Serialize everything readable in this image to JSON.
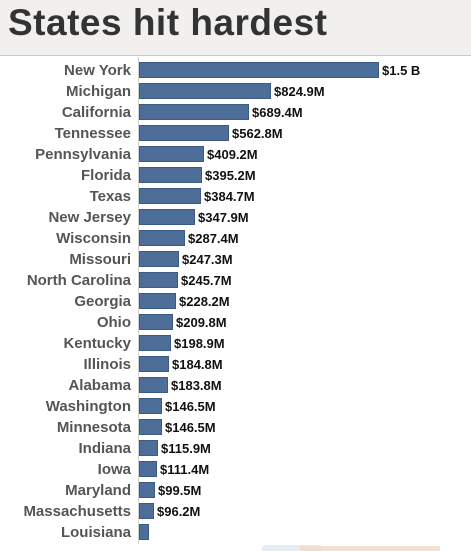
{
  "title": "States hit hardest",
  "colors": {
    "bar": "#4e6e9a",
    "title_bg": "#f1f0ee"
  },
  "chart_data": {
    "type": "bar",
    "orientation": "horizontal",
    "title": "States hit hardest",
    "xlabel": "",
    "ylabel": "",
    "grid": false,
    "xlim": [
      0,
      1500
    ],
    "unit": "USD millions",
    "categories": [
      "New York",
      "Michigan",
      "California",
      "Tennessee",
      "Pennsylvania",
      "Florida",
      "Texas",
      "New Jersey",
      "Wisconsin",
      "Missouri",
      "North Carolina",
      "Georgia",
      "Ohio",
      "Kentucky",
      "Illinois",
      "Alabama",
      "Washington",
      "Minnesota",
      "Indiana",
      "Iowa",
      "Maryland",
      "Massachusetts",
      "Louisiana"
    ],
    "values": [
      1500,
      824.9,
      689.4,
      562.8,
      409.2,
      395.2,
      384.7,
      347.9,
      287.4,
      247.3,
      245.7,
      228.2,
      209.8,
      198.9,
      184.8,
      183.8,
      146.5,
      146.5,
      115.9,
      111.4,
      99.5,
      96.2,
      60
    ],
    "data_labels": [
      "$1.5 B",
      "$824.9M",
      "$689.4M",
      "$562.8M",
      "$409.2M",
      "$395.2M",
      "$384.7M",
      "$347.9M",
      "$287.4M",
      "$247.3M",
      "$245.7M",
      "$228.2M",
      "$209.8M",
      "$198.9M",
      "$184.8M",
      "$183.8M",
      "$146.5M",
      "$146.5M",
      "$115.9M",
      "$111.4M",
      "$99.5M",
      "$96.2M",
      ""
    ]
  }
}
